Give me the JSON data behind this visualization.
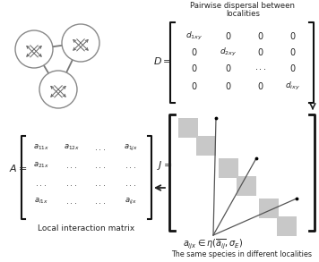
{
  "title_dispersal_line1": "Pairwise dispersal between",
  "title_dispersal_line2": "localities",
  "D_entries": [
    [
      "d_{1xy}",
      "0",
      "0",
      "0"
    ],
    [
      "0",
      "d_{2xy}",
      "0",
      "0"
    ],
    [
      "0",
      "0",
      "...",
      "0"
    ],
    [
      "0",
      "0",
      "0",
      "d_{ixy}"
    ]
  ],
  "A_entries": [
    [
      "a_{11x}",
      "a_{12x}",
      "...",
      "a_{1jx}"
    ],
    [
      "a_{21x}",
      "...",
      "...",
      "..."
    ],
    [
      "...",
      "...",
      "...",
      "..."
    ],
    [
      "a_{i1x}",
      "...",
      "...",
      "a_{ijx}"
    ]
  ],
  "A_caption": "Local interaction matrix",
  "J_caption_line1": "a_{ijx}\\in\\eta(\\overline{a_{ij}},\\sigma_E)",
  "J_caption_line2": "The same species in different localities",
  "bg_color": "#ffffff",
  "gray_color": "#c8c8c8",
  "dark_color": "#222222",
  "bracket_color": "#111111"
}
